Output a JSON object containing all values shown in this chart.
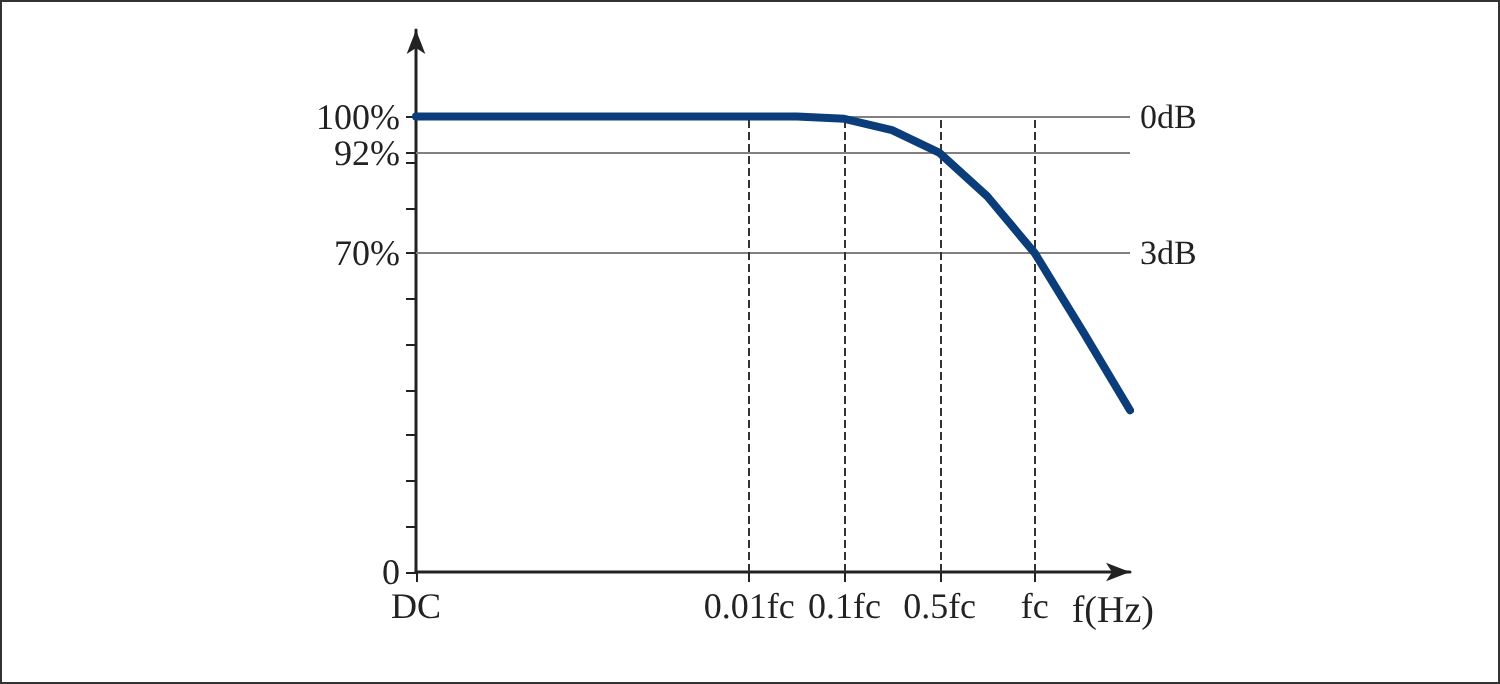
{
  "chart_data": {
    "type": "line",
    "xlabel": "f(Hz)",
    "categories": [
      "DC",
      null,
      null,
      null,
      null,
      null,
      null,
      "0.01fc",
      null,
      "0.1fc",
      null,
      "0.5fc",
      null,
      "fc",
      null,
      null
    ],
    "series": [
      {
        "color": "#0b3d7a",
        "values": [
          100,
          100,
          100,
          100,
          100,
          100,
          100,
          100,
          100,
          99.5,
          97,
          92,
          82.5,
          70,
          53,
          35.5
        ]
      }
    ],
    "ylim": [
      0,
      119
    ],
    "yticks": [
      {
        "value": 0,
        "label": "0"
      },
      {
        "value": 10,
        "label": null
      },
      {
        "value": 20,
        "label": null
      },
      {
        "value": 30,
        "label": null
      },
      {
        "value": 40,
        "label": null
      },
      {
        "value": 50,
        "label": null
      },
      {
        "value": 60,
        "label": null
      },
      {
        "value": 70,
        "label": "70%"
      },
      {
        "value": 80,
        "label": null
      },
      {
        "value": 90,
        "label": null
      },
      {
        "value": 92,
        "label": "92%"
      },
      {
        "value": 100,
        "label": "100%"
      }
    ],
    "ref_lines": [
      {
        "axis": "y",
        "value": 100,
        "label": "0dB",
        "color": "#808080",
        "line_style": "solid"
      },
      {
        "axis": "y",
        "value": 92,
        "label": null,
        "color": "#808080",
        "line_style": "solid"
      },
      {
        "axis": "y",
        "value": 70,
        "label": "3dB",
        "color": "#808080",
        "line_style": "solid"
      },
      {
        "axis": "x",
        "value": "0.01fc",
        "label": null,
        "color": "#333333",
        "line_style": "dashed"
      },
      {
        "axis": "x",
        "value": "0.1fc",
        "label": null,
        "color": "#333333",
        "line_style": "dashed"
      },
      {
        "axis": "x",
        "value": "0.5fc",
        "label": null,
        "color": "#333333",
        "line_style": "dashed"
      },
      {
        "axis": "x",
        "value": "fc",
        "label": null,
        "color": "#333333",
        "line_style": "dashed"
      }
    ],
    "grid": false,
    "marker": "none",
    "line_style": "solid"
  }
}
